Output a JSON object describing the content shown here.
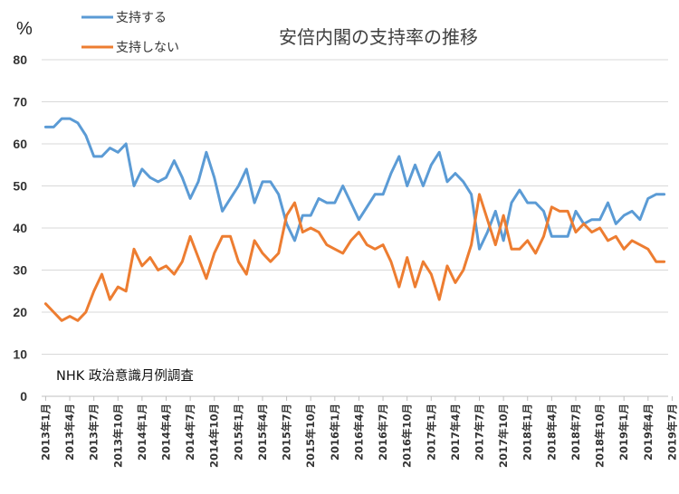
{
  "chart_data": {
    "type": "line",
    "title": "安倍内閣の支持率の推移",
    "ylabel": "%",
    "note": "NHK 政治意識月例調査",
    "ylim": [
      0,
      80
    ],
    "yticks": [
      0,
      10,
      20,
      30,
      40,
      50,
      60,
      70,
      80
    ],
    "legend_position": "top-left",
    "grid": "horizontal",
    "tick_labels": [
      "2013年1月",
      "2013年4月",
      "2013年7月",
      "2013年10月",
      "2014年1月",
      "2014年4月",
      "2014年7月",
      "2014年10月",
      "2015年1月",
      "2015年4月",
      "2015年7月",
      "2015年10月",
      "2016年1月",
      "2016年4月",
      "2016年7月",
      "2016年10月",
      "2017年1月",
      "2017年4月",
      "2017年7月",
      "2017年10月",
      "2018年1月",
      "2018年4月",
      "2018年7月",
      "2018年10月",
      "2019年1月",
      "2019年4月",
      "2019年7月"
    ],
    "series": [
      {
        "name": "支持する",
        "color": "#5B9BD5",
        "values": [
          64,
          64,
          66,
          66,
          65,
          62,
          57,
          57,
          59,
          58,
          60,
          50,
          54,
          52,
          51,
          52,
          56,
          52,
          47,
          51,
          58,
          52,
          44,
          47,
          50,
          54,
          46,
          51,
          51,
          48,
          41,
          37,
          43,
          43,
          47,
          46,
          46,
          50,
          46,
          42,
          45,
          48,
          48,
          53,
          57,
          50,
          55,
          50,
          55,
          58,
          51,
          53,
          51,
          48,
          35,
          39,
          44,
          37,
          46,
          49,
          46,
          46,
          44,
          38,
          38,
          38,
          44,
          41,
          42,
          42,
          46,
          41,
          43,
          44,
          42,
          47,
          48,
          48
        ]
      },
      {
        "name": "支持しない",
        "color": "#ED7D31",
        "values": [
          22,
          20,
          18,
          19,
          18,
          20,
          25,
          29,
          23,
          26,
          25,
          35,
          31,
          33,
          30,
          31,
          29,
          32,
          38,
          33,
          28,
          34,
          38,
          38,
          32,
          29,
          37,
          34,
          32,
          34,
          43,
          46,
          39,
          40,
          39,
          36,
          35,
          34,
          37,
          39,
          36,
          35,
          36,
          32,
          26,
          33,
          26,
          32,
          29,
          23,
          31,
          27,
          30,
          36,
          48,
          42,
          36,
          43,
          35,
          35,
          37,
          34,
          38,
          45,
          44,
          44,
          39,
          41,
          39,
          40,
          37,
          38,
          35,
          37,
          36,
          35,
          32,
          32
        ]
      }
    ]
  }
}
